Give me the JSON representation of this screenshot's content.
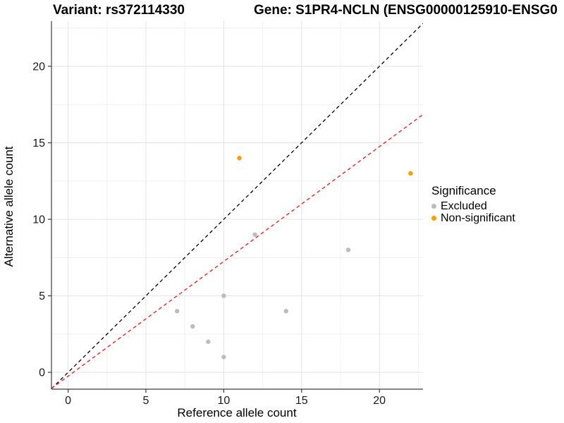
{
  "chart_data": {
    "type": "scatter",
    "title_variant": "Variant: rs372114330",
    "title_gene": "Gene: S1PR4-NCLN (ENSG00000125910-ENSG0",
    "xlabel": "Reference allele count",
    "ylabel": "Alternative allele count",
    "xlim": [
      -1.07,
      22.8
    ],
    "ylim": [
      -1.1,
      22.95
    ],
    "x_ticks": [
      0,
      5,
      10,
      15,
      20
    ],
    "y_ticks": [
      0,
      5,
      10,
      15,
      20
    ],
    "x_minor": [
      2.5,
      7.5,
      12.5,
      17.5,
      22.5
    ],
    "y_minor": [
      2.5,
      7.5,
      12.5,
      17.5,
      22.5
    ],
    "grid": true,
    "legend": {
      "title": "Significance",
      "position": "right"
    },
    "series": [
      {
        "name": "Excluded",
        "color": "#bcbcbc",
        "points": [
          [
            7,
            4
          ],
          [
            8,
            3
          ],
          [
            9,
            2
          ],
          [
            10,
            1
          ],
          [
            10,
            5
          ],
          [
            12,
            9
          ],
          [
            14,
            4
          ],
          [
            18,
            8
          ]
        ]
      },
      {
        "name": "Non-significant",
        "color": "#ff9e00",
        "points": [
          [
            11,
            14
          ],
          [
            22,
            13
          ]
        ]
      }
    ],
    "lines": [
      {
        "name": "identity-line",
        "color": "#000000",
        "slope": 1,
        "intercept": 0,
        "dash": "5,4"
      },
      {
        "name": "fit-line",
        "color": "#ff1414",
        "slope": 0.75,
        "intercept": -0.25,
        "dash": "5,4"
      }
    ],
    "colors": {
      "grid_major": "#e3e3e3",
      "grid_minor": "#f0f0f0",
      "axis": "#3c3c3c",
      "tick_text": "#1a1a1a"
    }
  }
}
